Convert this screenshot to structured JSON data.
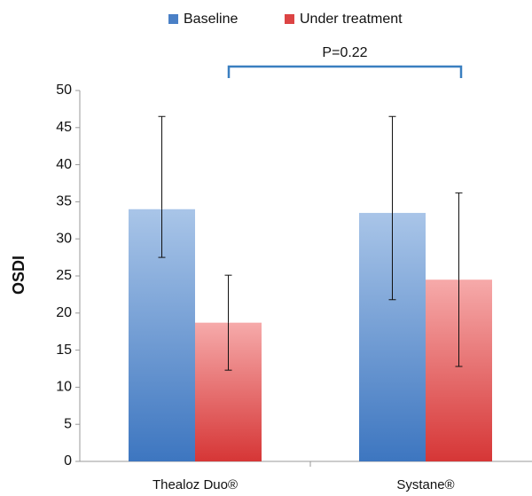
{
  "chart_data": {
    "type": "bar",
    "categories": [
      "Thealoz Duo®",
      "Systane®"
    ],
    "y_label": "OSDI",
    "annotation": "P=0.22",
    "series": [
      {
        "name": "Baseline",
        "color": "#4a80c6",
        "values": [
          34,
          33.5
        ],
        "error_minus": [
          6.5,
          11.7
        ],
        "error_plus": [
          12.5,
          13
        ]
      },
      {
        "name": "Under treatment",
        "color": "#dc4444",
        "values": [
          18.7,
          24.5
        ],
        "error_minus": [
          6.4,
          11.7
        ],
        "error_plus": [
          6.4,
          11.7
        ]
      }
    ],
    "ylim": [
      0,
      50
    ],
    "yticks": [
      0,
      5,
      10,
      15,
      20,
      25,
      30,
      35,
      40,
      45,
      50
    ],
    "grid": false
  }
}
